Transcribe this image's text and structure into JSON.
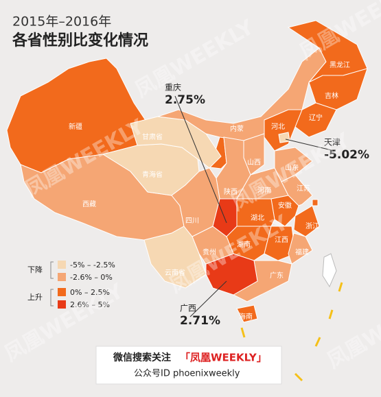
{
  "header": {
    "subtitle": "2015年–2016年",
    "title": "各省性别比变化情况"
  },
  "watermark": "凤凰WEEKLY",
  "legend": {
    "groups": [
      {
        "label": "下降",
        "items": [
          {
            "label": "-5% – -2.5%",
            "color": "#f6d8b3"
          },
          {
            "label": "-2.6% – 0%",
            "color": "#f5a674"
          }
        ]
      },
      {
        "label": "上升",
        "items": [
          {
            "label": "0% – 2.5%",
            "color": "#f26a1c"
          },
          {
            "label": "2.6% – 5%",
            "color": "#e83a17"
          }
        ]
      }
    ]
  },
  "provinces": [
    {
      "name": "新疆",
      "color": "#f26a1c"
    },
    {
      "name": "西藏",
      "color": "#f5a674"
    },
    {
      "name": "青海省",
      "color": "#f6d8b3"
    },
    {
      "name": "甘肃省",
      "color": "#f6d8b3"
    },
    {
      "name": "内蒙",
      "color": "#f5a674"
    },
    {
      "name": "黑龙江",
      "color": "#f26a1c"
    },
    {
      "name": "吉林",
      "color": "#f26a1c"
    },
    {
      "name": "辽宁",
      "color": "#f26a1c"
    },
    {
      "name": "河北",
      "color": "#f26a1c"
    },
    {
      "name": "山西",
      "color": "#f5a674"
    },
    {
      "name": "陕西",
      "color": "#f5a674"
    },
    {
      "name": "山东",
      "color": "#f5a674"
    },
    {
      "name": "河南",
      "color": "#f5a674"
    },
    {
      "name": "江苏",
      "color": "#f5a674"
    },
    {
      "name": "安徽",
      "color": "#f26a1c"
    },
    {
      "name": "湖北",
      "color": "#f26a1c"
    },
    {
      "name": "湖南",
      "color": "#f26a1c"
    },
    {
      "name": "江西",
      "color": "#f26a1c"
    },
    {
      "name": "浙江",
      "color": "#f26a1c"
    },
    {
      "name": "福建",
      "color": "#f5a674"
    },
    {
      "name": "广东",
      "color": "#f5a674"
    },
    {
      "name": "贵州",
      "color": "#f5a674"
    },
    {
      "name": "云南省",
      "color": "#f6d8b3"
    },
    {
      "name": "四川",
      "color": "#f5a674"
    },
    {
      "name": "海南",
      "color": "#f26a1c"
    }
  ],
  "callouts": [
    {
      "name": "重庆",
      "value": "2.75%",
      "color": "#e83a17"
    },
    {
      "name": "天津",
      "value": "-5.02%",
      "color": "#f6d8b3"
    },
    {
      "name": "广西",
      "value": "2.71%",
      "color": "#e83a17"
    }
  ],
  "footer": {
    "prompt": "微信搜索关注",
    "brand": "「凤凰WEEKLY」",
    "account": "公众号ID  phoenixweekly"
  }
}
